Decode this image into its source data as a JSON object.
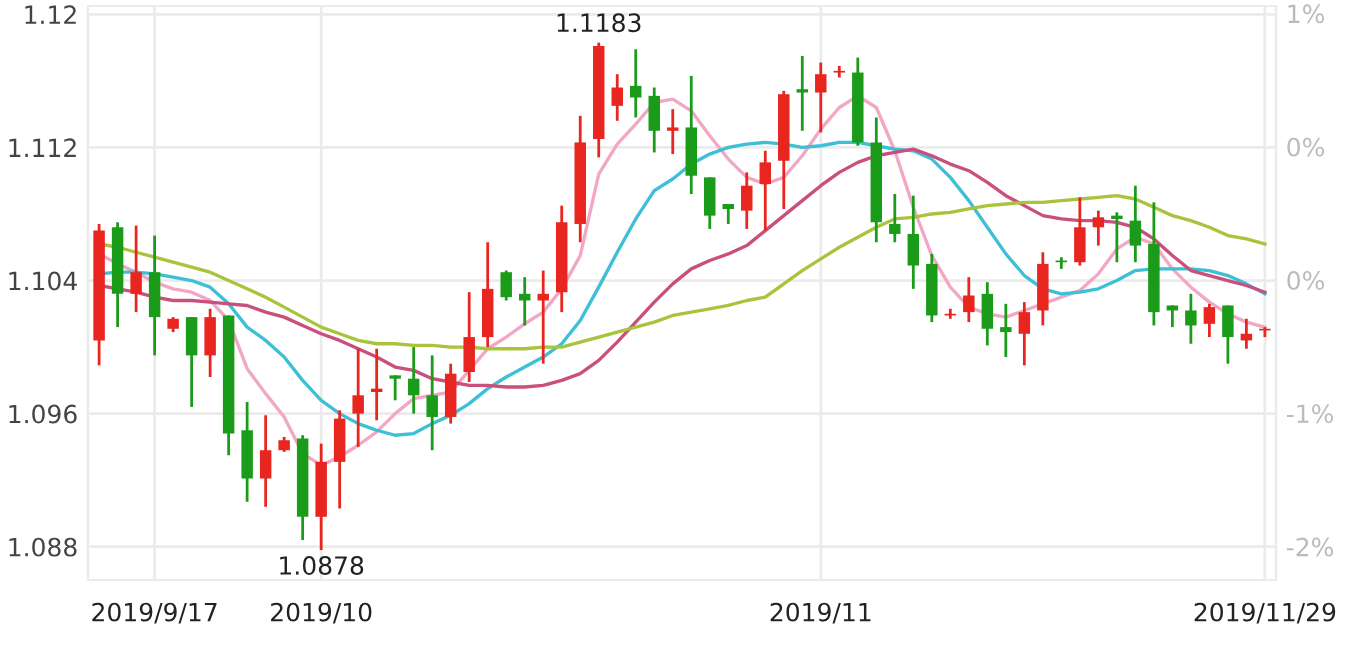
{
  "chart_data": {
    "type": "candlestick",
    "categories": [
      null,
      null,
      null,
      "2019/9/17",
      null,
      null,
      null,
      null,
      null,
      null,
      null,
      null,
      "2019/10",
      null,
      null,
      null,
      null,
      null,
      null,
      null,
      null,
      null,
      null,
      null,
      null,
      null,
      null,
      null,
      null,
      null,
      null,
      null,
      null,
      null,
      null,
      null,
      null,
      null,
      null,
      "2019/11",
      null,
      null,
      null,
      null,
      null,
      null,
      null,
      null,
      null,
      null,
      null,
      null,
      null,
      null,
      null,
      null,
      null,
      null,
      null,
      null,
      null,
      null,
      null,
      "2019/11/29"
    ],
    "ohlc": [
      [
        1.1004,
        1.1074,
        1.0989,
        1.107
      ],
      [
        1.1072,
        1.1075,
        1.1012,
        1.1032
      ],
      [
        1.1032,
        1.1073,
        1.1021,
        1.1045
      ],
      [
        1.1045,
        1.1067,
        1.0995,
        1.1018
      ],
      [
        1.1011,
        1.1018,
        1.1009,
        1.1017
      ],
      [
        1.1018,
        1.1018,
        1.0964,
        1.0995
      ],
      [
        1.0995,
        1.1023,
        1.0982,
        1.1018
      ],
      [
        1.1019,
        1.1019,
        1.0935,
        1.0948
      ],
      [
        1.095,
        1.0967,
        1.0907,
        1.0921
      ],
      [
        1.0921,
        1.0959,
        1.0904,
        1.0938
      ],
      [
        1.0938,
        1.0946,
        1.0937,
        1.0944
      ],
      [
        1.0945,
        1.0947,
        1.0884,
        1.0898
      ],
      [
        1.0898,
        1.0942,
        1.0878,
        1.0931
      ],
      [
        1.0931,
        1.0962,
        1.0903,
        1.0957
      ],
      [
        1.096,
        1.0999,
        1.094,
        1.0971
      ],
      [
        1.0973,
        1.0999,
        1.0956,
        1.0975
      ],
      [
        1.0983,
        1.0983,
        1.0968,
        1.0981
      ],
      [
        1.0981,
        1.1,
        1.096,
        1.0971
      ],
      [
        1.0971,
        1.0995,
        1.0938,
        1.0958
      ],
      [
        1.0958,
        1.099,
        1.0954,
        1.0984
      ],
      [
        1.0985,
        1.1033,
        1.0979,
        1.1006
      ],
      [
        1.1006,
        1.1063,
        1.1,
        1.1035
      ],
      [
        1.1045,
        1.1046,
        1.1028,
        1.103
      ],
      [
        1.1032,
        1.1042,
        1.1013,
        1.1028
      ],
      [
        1.1028,
        1.1046,
        1.099,
        1.1032
      ],
      [
        1.1033,
        1.1085,
        1.1021,
        1.1075
      ],
      [
        1.1074,
        1.1139,
        1.1063,
        1.1123
      ],
      [
        1.1125,
        1.1183,
        1.1114,
        1.1181
      ],
      [
        1.1145,
        1.1164,
        1.1136,
        1.1156
      ],
      [
        1.1157,
        1.1179,
        1.1138,
        1.115
      ],
      [
        1.1151,
        1.1156,
        1.1117,
        1.113
      ],
      [
        1.113,
        1.1143,
        1.1116,
        1.1132
      ],
      [
        1.1132,
        1.1163,
        1.1092,
        1.1103
      ],
      [
        1.1102,
        1.1102,
        1.1071,
        1.1079
      ],
      [
        1.1086,
        1.1086,
        1.1074,
        1.1083
      ],
      [
        1.1082,
        1.1105,
        1.1071,
        1.1097
      ],
      [
        1.1098,
        1.1118,
        1.107,
        1.1111
      ],
      [
        1.1112,
        1.1154,
        1.1083,
        1.1152
      ],
      [
        1.1155,
        1.1175,
        1.113,
        1.1153
      ],
      [
        1.1153,
        1.1171,
        1.1129,
        1.1164
      ],
      [
        1.1165,
        1.1169,
        1.1162,
        1.1166
      ],
      [
        1.1165,
        1.1174,
        1.1121,
        1.1123
      ],
      [
        1.1123,
        1.1138,
        1.1063,
        1.1075
      ],
      [
        1.1074,
        1.1092,
        1.1063,
        1.1068
      ],
      [
        1.1068,
        1.1091,
        1.1035,
        1.1049
      ],
      [
        1.105,
        1.1056,
        1.1015,
        1.1019
      ],
      [
        1.1019,
        1.1023,
        1.1017,
        1.102
      ],
      [
        1.1021,
        1.1042,
        1.1015,
        1.1031
      ],
      [
        1.1032,
        1.1039,
        1.1001,
        1.1011
      ],
      [
        1.1012,
        1.1026,
        1.0994,
        1.1009
      ],
      [
        1.1008,
        1.1027,
        1.0989,
        1.1021
      ],
      [
        1.1022,
        1.1057,
        1.1013,
        1.105
      ],
      [
        1.1052,
        1.1054,
        1.1047,
        1.1051
      ],
      [
        1.1051,
        1.109,
        1.1049,
        1.1072
      ],
      [
        1.1072,
        1.1082,
        1.1061,
        1.1078
      ],
      [
        1.1079,
        1.1081,
        1.1051,
        1.1077
      ],
      [
        1.1076,
        1.1097,
        1.1051,
        1.1061
      ],
      [
        1.1062,
        1.1087,
        1.1013,
        1.1021
      ],
      [
        1.1025,
        1.1025,
        1.1012,
        1.1022
      ],
      [
        1.1022,
        1.1032,
        1.1002,
        1.1013
      ],
      [
        1.1014,
        1.1026,
        1.1006,
        1.1024
      ],
      [
        1.1025,
        1.1025,
        1.099,
        1.1006
      ],
      [
        1.1004,
        1.1017,
        1.0999,
        1.1008
      ],
      [
        1.101,
        1.1012,
        1.1006,
        1.1011
      ]
    ],
    "colors": [
      "#e8251f",
      "#1a9c1a",
      "#e8251f",
      "#1a9c1a",
      "#e8251f",
      "#1a9c1a",
      "#e8251f",
      "#1a9c1a",
      "#1a9c1a",
      "#e8251f",
      "#e8251f",
      "#1a9c1a",
      "#e8251f",
      "#e8251f",
      "#e8251f",
      "#e8251f",
      "#1a9c1a",
      "#1a9c1a",
      "#1a9c1a",
      "#e8251f",
      "#e8251f",
      "#e8251f",
      "#1a9c1a",
      "#1a9c1a",
      "#e8251f",
      "#e8251f",
      "#e8251f",
      "#e8251f",
      "#e8251f",
      "#1a9c1a",
      "#1a9c1a",
      "#e8251f",
      "#1a9c1a",
      "#1a9c1a",
      "#1a9c1a",
      "#e8251f",
      "#e8251f",
      "#e8251f",
      "#1a9c1a",
      "#e8251f",
      "#e8251f",
      "#1a9c1a",
      "#1a9c1a",
      "#1a9c1a",
      "#1a9c1a",
      "#1a9c1a",
      "#e8251f",
      "#e8251f",
      "#1a9c1a",
      "#1a9c1a",
      "#e8251f",
      "#e8251f",
      "#1a9c1a",
      "#e8251f",
      "#e8251f",
      "#1a9c1a",
      "#1a9c1a",
      "#1a9c1a",
      "#1a9c1a",
      "#1a9c1a",
      "#e8251f",
      "#1a9c1a",
      "#e8251f",
      "#e8251f"
    ],
    "series": [
      {
        "type": "line",
        "color": "#f2a7c4",
        "values": [
          1.1056,
          1.105,
          1.1045,
          1.1039,
          1.1035,
          1.1033,
          1.1028,
          1.1016,
          1.0987,
          1.0972,
          1.0958,
          1.0936,
          1.0929,
          1.0934,
          1.0941,
          1.0949,
          1.096,
          1.0969,
          1.0971,
          1.0973,
          1.0986,
          1.0999,
          1.1006,
          1.1014,
          1.1021,
          1.1035,
          1.1055,
          1.1104,
          1.1122,
          1.1134,
          1.1147,
          1.1149,
          1.1142,
          1.1127,
          1.1113,
          1.1102,
          1.1098,
          1.1102,
          1.1115,
          1.1131,
          1.1144,
          1.1151,
          1.1144,
          1.1118,
          1.1084,
          1.1055,
          1.1036,
          1.1024,
          1.102,
          1.1018,
          1.1022,
          1.1026,
          1.103,
          1.1034,
          1.1044,
          1.1059,
          1.1066,
          1.1062,
          1.1047,
          1.1036,
          1.1027,
          1.102,
          1.1015,
          1.1012
        ]
      },
      {
        "type": "line",
        "color": "#3dbfd6",
        "values": [
          1.1044,
          1.1045,
          1.1045,
          1.1044,
          1.1042,
          1.104,
          1.1036,
          1.1026,
          1.1012,
          1.1004,
          1.0994,
          1.098,
          1.0968,
          1.096,
          1.0954,
          1.095,
          1.0947,
          1.0948,
          1.0954,
          1.0959,
          1.0966,
          1.0975,
          1.0982,
          1.0988,
          1.0994,
          1.1002,
          1.1016,
          1.1036,
          1.1057,
          1.1077,
          1.1094,
          1.1101,
          1.111,
          1.1116,
          1.112,
          1.1122,
          1.1123,
          1.1122,
          1.112,
          1.1121,
          1.1123,
          1.1123,
          1.1121,
          1.1119,
          1.1118,
          1.1113,
          1.1102,
          1.1088,
          1.1072,
          1.1056,
          1.1043,
          1.1035,
          1.1032,
          1.1033,
          1.1035,
          1.104,
          1.1046,
          1.1047,
          1.1047,
          1.1047,
          1.1046,
          1.1043,
          1.1038,
          1.1032
        ]
      },
      {
        "type": "line",
        "color": "#c94f7c",
        "values": [
          1.1037,
          1.1035,
          1.1033,
          1.103,
          1.1028,
          1.1028,
          1.1027,
          1.1026,
          1.1025,
          1.1021,
          1.1018,
          1.1013,
          1.1008,
          1.1004,
          1.0999,
          1.0994,
          1.0988,
          1.0986,
          1.0981,
          1.0979,
          1.0977,
          1.0977,
          1.0976,
          1.0976,
          1.0977,
          1.098,
          1.0984,
          1.0992,
          1.1003,
          1.1015,
          1.1027,
          1.1038,
          1.1047,
          1.1052,
          1.1056,
          1.1061,
          1.107,
          1.1079,
          1.1088,
          1.1097,
          1.1105,
          1.1111,
          1.1115,
          1.1117,
          1.1119,
          1.1115,
          1.111,
          1.1106,
          1.1099,
          1.1091,
          1.1085,
          1.1079,
          1.1077,
          1.1076,
          1.1076,
          1.1075,
          1.1072,
          1.1065,
          1.1055,
          1.1046,
          1.1043,
          1.104,
          1.1037,
          1.1033
        ]
      },
      {
        "type": "line",
        "color": "#a8c43c",
        "values": [
          1.1062,
          1.106,
          1.1057,
          1.1054,
          1.1051,
          1.1048,
          1.1045,
          1.104,
          1.1035,
          1.103,
          1.1024,
          1.1018,
          1.1012,
          1.1008,
          1.1004,
          1.1002,
          1.1002,
          1.1001,
          1.1001,
          1.1,
          1.1,
          1.0999,
          1.0999,
          1.0999,
          1.1,
          1.1,
          1.1003,
          1.1006,
          1.1009,
          1.1012,
          1.1015,
          1.1019,
          1.1021,
          1.1023,
          1.1025,
          1.1028,
          1.103,
          1.1038,
          1.1046,
          1.1053,
          1.106,
          1.1066,
          1.1072,
          1.1077,
          1.1078,
          1.108,
          1.1081,
          1.1083,
          1.1085,
          1.1086,
          1.1087,
          1.1087,
          1.1088,
          1.1089,
          1.109,
          1.1091,
          1.1089,
          1.1084,
          1.1079,
          1.1076,
          1.1072,
          1.1067,
          1.1065,
          1.1062
        ]
      }
    ],
    "ylim": [
      1.086,
      1.1205
    ],
    "yticks": [
      1.088,
      1.096,
      1.104,
      1.112,
      1.12
    ],
    "y2lim": [
      -2.07,
      1.03
    ],
    "y2ticks": [
      {
        "value": -1.89,
        "label": "-2%"
      },
      {
        "value": -1.17,
        "label": "-1%"
      },
      {
        "value": -0.45,
        "label": "0%"
      },
      {
        "value": 0.27,
        "label": "0%"
      },
      {
        "value": 0.99,
        "label": "1%"
      }
    ],
    "grid": true,
    "annotations": [
      {
        "text": "1.1183",
        "y": 1.1183
      },
      {
        "text": "1.0878",
        "y": 1.0878
      }
    ]
  }
}
